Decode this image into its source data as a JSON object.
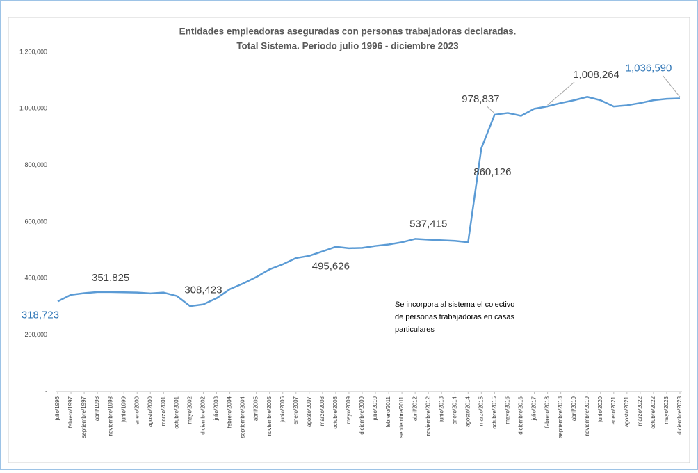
{
  "chart_data": {
    "type": "line",
    "title": [
      "Entidades empleadoras aseguradas con personas trabajadoras declaradas.",
      "Total Sistema. Periodo julio 1996 - diciembre 2023"
    ],
    "note": [
      "Se incorpora al sistema el colectivo",
      "de personas trabajadoras en casas",
      "particulares"
    ],
    "categories": [
      "julio/1996",
      "febrero/1997",
      "septiembre/1997",
      "abril/1998",
      "noviembre/1998",
      "junio/1999",
      "enero/2000",
      "agosto/2000",
      "marzo/2001",
      "octubre/2001",
      "mayo/2002",
      "diciembre/2002",
      "julio/2003",
      "febrero/2004",
      "septiembre/2004",
      "abril/2005",
      "noviembre/2005",
      "junio/2006",
      "enero/2007",
      "agosto/2007",
      "marzo/2008",
      "octubre/2008",
      "mayo/2009",
      "diciembre/2009",
      "julio/2010",
      "febrero/2011",
      "septiembre/2011",
      "abril/2012",
      "noviembre/2012",
      "junio/2013",
      "enero/2014",
      "agosto/2014",
      "marzo/2015",
      "octubre/2015",
      "mayo/2016",
      "diciembre/2016",
      "julio/2017",
      "febrero/2018",
      "septiembre/2018",
      "abril/2019",
      "noviembre/2019",
      "junio/2020",
      "enero/2021",
      "agosto/2021",
      "marzo/2022",
      "octubre/2022",
      "mayo/2023",
      "diciembre/2023"
    ],
    "series": [
      {
        "color": "#5b9bd5",
        "values": [
          318723,
          342000,
          348000,
          352000,
          351825,
          351000,
          350000,
          347000,
          350000,
          338000,
          302000,
          308423,
          330000,
          362000,
          382000,
          405000,
          432000,
          450000,
          472000,
          480000,
          495626,
          512000,
          507000,
          508000,
          515000,
          520000,
          528000,
          540000,
          537415,
          535000,
          533000,
          528000,
          860126,
          978837,
          985000,
          975000,
          1000000,
          1008264,
          1020000,
          1030000,
          1042000,
          1030000,
          1008000,
          1012000,
          1020000,
          1030000,
          1035000,
          1036590
        ],
        "value_labels": [
          "318,723",
          null,
          null,
          null,
          "351,825",
          null,
          null,
          null,
          null,
          null,
          null,
          "308,423",
          null,
          null,
          null,
          null,
          null,
          null,
          null,
          null,
          "495,626",
          null,
          null,
          null,
          null,
          null,
          null,
          null,
          "537,415",
          null,
          null,
          null,
          "860,126",
          "978,837",
          null,
          null,
          null,
          "1,008,264",
          null,
          null,
          null,
          null,
          null,
          null,
          null,
          null,
          null,
          "1,036,590"
        ]
      }
    ],
    "ylim": [
      0,
      1200000
    ],
    "yticks": [
      {
        "value": 0,
        "label": "-"
      },
      {
        "value": 200000,
        "label": "200,000"
      },
      {
        "value": 400000,
        "label": "400,000"
      },
      {
        "value": 600000,
        "label": "600,000"
      },
      {
        "value": 800000,
        "label": "800,000"
      },
      {
        "value": 1000000,
        "label": "1,000,000"
      },
      {
        "value": 1200000,
        "label": "1,200,000"
      }
    ],
    "grid": false
  }
}
